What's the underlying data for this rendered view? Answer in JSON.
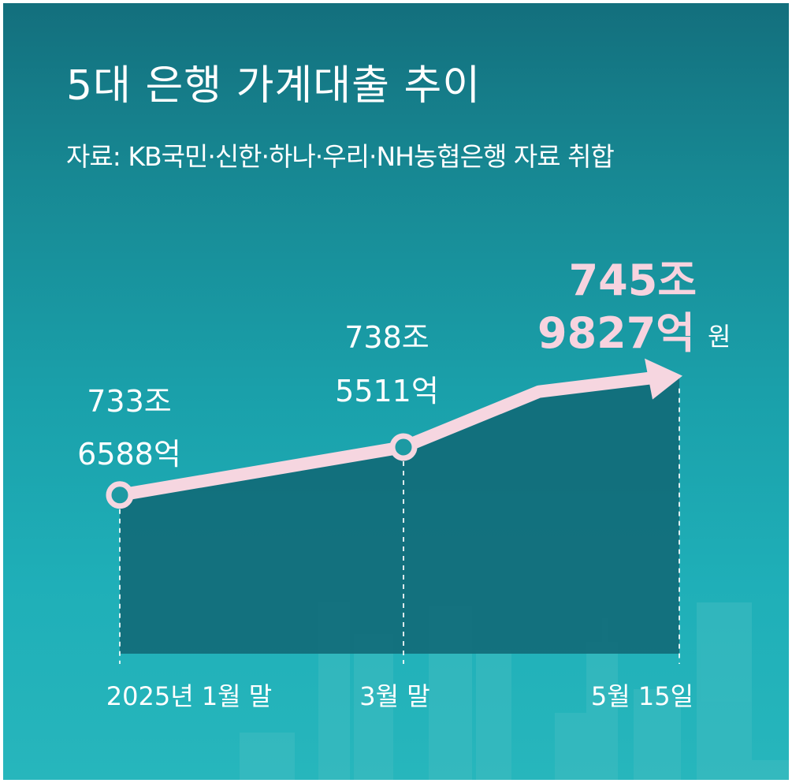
{
  "chart_data": {
    "type": "area",
    "title": "5대 은행 가계대출 추이",
    "subtitle": "자료: KB국민·신한·하나·우리·NH농협은행 자료 취합",
    "categories": [
      "2025년 1월 말",
      "3월 말",
      "5월 15일"
    ],
    "values": [
      733.6588,
      738.5511,
      745.9827
    ],
    "data_labels": [
      [
        "733조",
        "6588억"
      ],
      [
        "738조",
        "5511억"
      ],
      [
        "745조",
        "9827억"
      ]
    ],
    "highlight_unit": "원",
    "ylim": [
      720,
      750
    ],
    "grid": false,
    "legend": "none"
  },
  "colors": {
    "background_top": "#136f7d",
    "background_bottom": "#27b6bc",
    "area_fill": "#126a78",
    "line": "#f6d6e0",
    "highlight_text": "#f7d3df",
    "marker_fill": "#1d9aa3"
  }
}
